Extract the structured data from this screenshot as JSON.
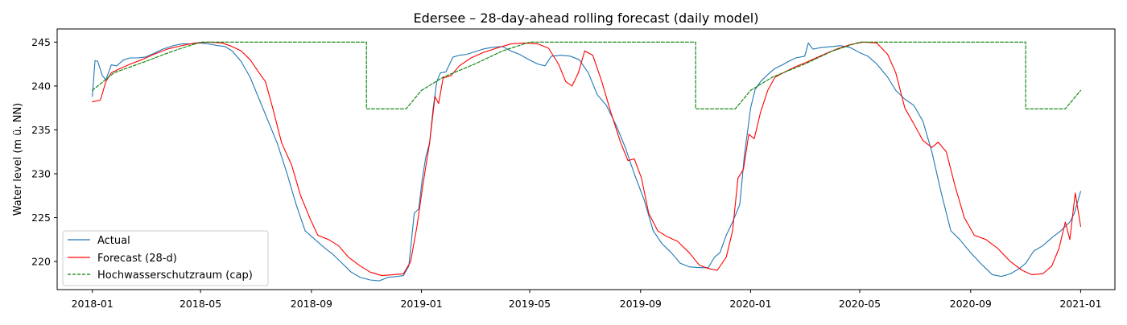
{
  "chart_data": {
    "type": "line",
    "title": "Edersee – 28-day-ahead rolling forecast (daily model)",
    "xlabel": "",
    "ylabel": "Water level (m ü. NN)",
    "xlim": [
      "2017-11-23",
      "2021-02-08"
    ],
    "ylim": [
      216.8,
      246.5
    ],
    "x_ticks": [
      "2018-01",
      "2018-05",
      "2018-09",
      "2019-01",
      "2019-05",
      "2019-09",
      "2020-01",
      "2020-05",
      "2020-09",
      "2021-01"
    ],
    "y_ticks": [
      220,
      225,
      230,
      235,
      240,
      245
    ],
    "grid": false,
    "legend_position": "lower-left",
    "series": [
      {
        "name": "Actual",
        "color": "#1f77b4",
        "style": "solid",
        "points": [
          [
            "2018-01-01",
            238.8
          ],
          [
            "2018-01-04",
            242.9
          ],
          [
            "2018-01-07",
            242.8
          ],
          [
            "2018-01-12",
            241.2
          ],
          [
            "2018-01-16",
            240.7
          ],
          [
            "2018-01-22",
            242.4
          ],
          [
            "2018-01-28",
            242.3
          ],
          [
            "2018-02-05",
            243.0
          ],
          [
            "2018-02-12",
            243.2
          ],
          [
            "2018-02-20",
            243.2
          ],
          [
            "2018-03-01",
            243.3
          ],
          [
            "2018-03-10",
            243.7
          ],
          [
            "2018-03-20",
            244.2
          ],
          [
            "2018-04-01",
            244.6
          ],
          [
            "2018-04-10",
            244.8
          ],
          [
            "2018-04-20",
            244.8
          ],
          [
            "2018-05-01",
            244.9
          ],
          [
            "2018-05-10",
            244.8
          ],
          [
            "2018-05-20",
            244.6
          ],
          [
            "2018-05-28",
            244.5
          ],
          [
            "2018-06-05",
            244.0
          ],
          [
            "2018-06-15",
            242.8
          ],
          [
            "2018-06-25",
            241.0
          ],
          [
            "2018-07-05",
            238.5
          ],
          [
            "2018-07-15",
            236.0
          ],
          [
            "2018-07-25",
            233.5
          ],
          [
            "2018-08-05",
            230.0
          ],
          [
            "2018-08-15",
            226.5
          ],
          [
            "2018-08-25",
            223.5
          ],
          [
            "2018-09-05",
            222.5
          ],
          [
            "2018-09-15",
            221.6
          ],
          [
            "2018-09-25",
            220.8
          ],
          [
            "2018-10-05",
            219.8
          ],
          [
            "2018-10-15",
            218.8
          ],
          [
            "2018-10-25",
            218.2
          ],
          [
            "2018-11-05",
            217.9
          ],
          [
            "2018-11-15",
            217.8
          ],
          [
            "2018-11-25",
            218.2
          ],
          [
            "2018-12-05",
            218.3
          ],
          [
            "2018-12-12",
            218.4
          ],
          [
            "2018-12-18",
            219.5
          ],
          [
            "2018-12-24",
            225.5
          ],
          [
            "2018-12-29",
            226.0
          ],
          [
            "2019-01-02",
            229.5
          ],
          [
            "2019-01-06",
            232.0
          ],
          [
            "2019-01-10",
            233.5
          ],
          [
            "2019-01-14",
            237.5
          ],
          [
            "2019-01-18",
            240.5
          ],
          [
            "2019-01-22",
            241.5
          ],
          [
            "2019-01-28",
            241.6
          ],
          [
            "2019-02-05",
            243.3
          ],
          [
            "2019-02-12",
            243.5
          ],
          [
            "2019-02-20",
            243.6
          ],
          [
            "2019-03-01",
            243.9
          ],
          [
            "2019-03-10",
            244.2
          ],
          [
            "2019-03-20",
            244.4
          ],
          [
            "2019-04-01",
            244.5
          ],
          [
            "2019-04-10",
            244.0
          ],
          [
            "2019-04-20",
            243.6
          ],
          [
            "2019-04-30",
            243.0
          ],
          [
            "2019-05-10",
            242.5
          ],
          [
            "2019-05-18",
            242.3
          ],
          [
            "2019-05-25",
            243.4
          ],
          [
            "2019-06-05",
            243.5
          ],
          [
            "2019-06-15",
            243.4
          ],
          [
            "2019-06-25",
            243.0
          ],
          [
            "2019-07-05",
            241.5
          ],
          [
            "2019-07-15",
            239.0
          ],
          [
            "2019-07-25",
            237.8
          ],
          [
            "2019-08-05",
            235.5
          ],
          [
            "2019-08-15",
            233.0
          ],
          [
            "2019-08-25",
            230.0
          ],
          [
            "2019-09-05",
            227.0
          ],
          [
            "2019-09-15",
            223.5
          ],
          [
            "2019-09-25",
            222.0
          ],
          [
            "2019-10-05",
            221.0
          ],
          [
            "2019-10-15",
            219.8
          ],
          [
            "2019-10-25",
            219.4
          ],
          [
            "2019-11-05",
            219.3
          ],
          [
            "2019-11-15",
            219.3
          ],
          [
            "2019-11-22",
            220.5
          ],
          [
            "2019-11-28",
            221.0
          ],
          [
            "2019-12-05",
            223.0
          ],
          [
            "2019-12-12",
            224.5
          ],
          [
            "2019-12-20",
            226.5
          ],
          [
            "2019-12-25",
            232.0
          ],
          [
            "2020-01-01",
            237.5
          ],
          [
            "2020-01-06",
            239.6
          ],
          [
            "2020-01-12",
            240.5
          ],
          [
            "2020-01-20",
            241.3
          ],
          [
            "2020-01-28",
            242.0
          ],
          [
            "2020-02-05",
            242.4
          ],
          [
            "2020-02-12",
            242.8
          ],
          [
            "2020-02-20",
            243.2
          ],
          [
            "2020-03-01",
            243.4
          ],
          [
            "2020-03-05",
            244.9
          ],
          [
            "2020-03-10",
            244.2
          ],
          [
            "2020-03-20",
            244.4
          ],
          [
            "2020-04-01",
            244.5
          ],
          [
            "2020-04-10",
            244.6
          ],
          [
            "2020-04-20",
            244.4
          ],
          [
            "2020-05-01",
            243.8
          ],
          [
            "2020-05-10",
            243.4
          ],
          [
            "2020-05-20",
            242.5
          ],
          [
            "2020-06-01",
            241.0
          ],
          [
            "2020-06-10",
            239.5
          ],
          [
            "2020-06-20",
            238.5
          ],
          [
            "2020-06-30",
            237.8
          ],
          [
            "2020-07-10",
            236.0
          ],
          [
            "2020-07-20",
            232.5
          ],
          [
            "2020-07-30",
            228.0
          ],
          [
            "2020-08-10",
            223.5
          ],
          [
            "2020-08-20",
            222.5
          ],
          [
            "2020-09-01",
            221.0
          ],
          [
            "2020-09-12",
            219.8
          ],
          [
            "2020-09-25",
            218.5
          ],
          [
            "2020-10-05",
            218.3
          ],
          [
            "2020-10-15",
            218.6
          ],
          [
            "2020-10-25",
            219.2
          ],
          [
            "2020-11-01",
            219.8
          ],
          [
            "2020-11-10",
            221.2
          ],
          [
            "2020-11-20",
            221.8
          ],
          [
            "2020-12-01",
            222.8
          ],
          [
            "2020-12-10",
            223.5
          ],
          [
            "2020-12-20",
            224.5
          ],
          [
            "2020-12-25",
            225.5
          ],
          [
            "2021-01-01",
            228.0
          ]
        ]
      },
      {
        "name": "Forecast (28-d)",
        "color": "#ff0000",
        "style": "solid",
        "points": [
          [
            "2018-01-01",
            238.2
          ],
          [
            "2018-01-10",
            238.4
          ],
          [
            "2018-01-16",
            240.5
          ],
          [
            "2018-01-22",
            241.5
          ],
          [
            "2018-02-01",
            242.0
          ],
          [
            "2018-02-12",
            242.5
          ],
          [
            "2018-02-25",
            243.0
          ],
          [
            "2018-03-10",
            243.6
          ],
          [
            "2018-03-25",
            244.2
          ],
          [
            "2018-04-10",
            244.6
          ],
          [
            "2018-04-25",
            244.9
          ],
          [
            "2018-05-10",
            245.0
          ],
          [
            "2018-05-25",
            244.9
          ],
          [
            "2018-06-05",
            244.5
          ],
          [
            "2018-06-15",
            244.0
          ],
          [
            "2018-06-25",
            243.0
          ],
          [
            "2018-07-05",
            241.5
          ],
          [
            "2018-07-12",
            240.5
          ],
          [
            "2018-07-20",
            237.5
          ],
          [
            "2018-07-30",
            233.5
          ],
          [
            "2018-08-10",
            231.0
          ],
          [
            "2018-08-20",
            227.5
          ],
          [
            "2018-08-30",
            225.0
          ],
          [
            "2018-09-08",
            223.0
          ],
          [
            "2018-09-20",
            222.5
          ],
          [
            "2018-10-01",
            221.8
          ],
          [
            "2018-10-12",
            220.5
          ],
          [
            "2018-10-25",
            219.5
          ],
          [
            "2018-11-05",
            218.8
          ],
          [
            "2018-11-18",
            218.4
          ],
          [
            "2018-12-01",
            218.5
          ],
          [
            "2018-12-12",
            218.6
          ],
          [
            "2018-12-20",
            220.0
          ],
          [
            "2018-12-27",
            224.0
          ],
          [
            "2019-01-03",
            229.0
          ],
          [
            "2019-01-10",
            233.5
          ],
          [
            "2019-01-16",
            238.8
          ],
          [
            "2019-01-20",
            238.0
          ],
          [
            "2019-01-25",
            240.9
          ],
          [
            "2019-02-03",
            241.2
          ],
          [
            "2019-02-12",
            242.3
          ],
          [
            "2019-02-25",
            243.2
          ],
          [
            "2019-03-10",
            243.8
          ],
          [
            "2019-03-25",
            244.3
          ],
          [
            "2019-04-10",
            244.8
          ],
          [
            "2019-04-25",
            244.9
          ],
          [
            "2019-05-10",
            244.8
          ],
          [
            "2019-05-22",
            244.3
          ],
          [
            "2019-06-02",
            242.5
          ],
          [
            "2019-06-10",
            240.5
          ],
          [
            "2019-06-17",
            240.0
          ],
          [
            "2019-06-24",
            241.5
          ],
          [
            "2019-07-01",
            244.0
          ],
          [
            "2019-07-10",
            243.5
          ],
          [
            "2019-07-20",
            240.5
          ],
          [
            "2019-07-30",
            237.0
          ],
          [
            "2019-08-10",
            233.5
          ],
          [
            "2019-08-18",
            231.5
          ],
          [
            "2019-08-25",
            231.7
          ],
          [
            "2019-09-02",
            229.5
          ],
          [
            "2019-09-10",
            225.5
          ],
          [
            "2019-09-20",
            223.5
          ],
          [
            "2019-10-01",
            222.8
          ],
          [
            "2019-10-12",
            222.3
          ],
          [
            "2019-10-25",
            221.0
          ],
          [
            "2019-11-05",
            219.6
          ],
          [
            "2019-11-15",
            219.2
          ],
          [
            "2019-11-25",
            219.0
          ],
          [
            "2019-12-05",
            220.5
          ],
          [
            "2019-12-12",
            223.5
          ],
          [
            "2019-12-18",
            229.5
          ],
          [
            "2019-12-24",
            230.5
          ],
          [
            "2019-12-30",
            234.5
          ],
          [
            "2020-01-05",
            234.0
          ],
          [
            "2020-01-12",
            237.0
          ],
          [
            "2020-01-20",
            239.5
          ],
          [
            "2020-01-28",
            241.0
          ],
          [
            "2020-02-08",
            241.6
          ],
          [
            "2020-02-20",
            242.2
          ],
          [
            "2020-03-05",
            242.8
          ],
          [
            "2020-03-20",
            243.5
          ],
          [
            "2020-04-05",
            244.2
          ],
          [
            "2020-04-20",
            244.7
          ],
          [
            "2020-05-05",
            245.0
          ],
          [
            "2020-05-20",
            244.9
          ],
          [
            "2020-06-01",
            243.6
          ],
          [
            "2020-06-10",
            241.5
          ],
          [
            "2020-06-20",
            237.5
          ],
          [
            "2020-07-01",
            235.5
          ],
          [
            "2020-07-10",
            233.8
          ],
          [
            "2020-07-20",
            233.0
          ],
          [
            "2020-07-27",
            233.6
          ],
          [
            "2020-08-05",
            232.5
          ],
          [
            "2020-08-15",
            228.5
          ],
          [
            "2020-08-25",
            225.0
          ],
          [
            "2020-09-05",
            223.0
          ],
          [
            "2020-09-18",
            222.5
          ],
          [
            "2020-10-01",
            221.5
          ],
          [
            "2020-10-15",
            220.0
          ],
          [
            "2020-10-28",
            219.0
          ],
          [
            "2020-11-08",
            218.5
          ],
          [
            "2020-11-20",
            218.6
          ],
          [
            "2020-11-30",
            219.5
          ],
          [
            "2020-12-08",
            221.5
          ],
          [
            "2020-12-15",
            224.5
          ],
          [
            "2020-12-20",
            222.5
          ],
          [
            "2020-12-26",
            227.8
          ],
          [
            "2021-01-01",
            224.0
          ]
        ]
      },
      {
        "name": "Hochwasserschutzraum (cap)",
        "color": "#008000",
        "style": "dashed",
        "points": [
          [
            "2018-01-01",
            239.5
          ],
          [
            "2018-01-25",
            241.5
          ],
          [
            "2018-03-01",
            242.8
          ],
          [
            "2018-04-01",
            244.0
          ],
          [
            "2018-05-01",
            245.0
          ],
          [
            "2018-11-01",
            245.0
          ],
          [
            "2018-11-01",
            237.4
          ],
          [
            "2018-12-15",
            237.4
          ],
          [
            "2019-01-01",
            239.5
          ],
          [
            "2019-01-25",
            241.0
          ],
          [
            "2019-03-01",
            242.5
          ],
          [
            "2019-04-01",
            244.0
          ],
          [
            "2019-05-01",
            245.0
          ],
          [
            "2019-11-01",
            245.0
          ],
          [
            "2019-11-01",
            237.4
          ],
          [
            "2019-12-15",
            237.4
          ],
          [
            "2020-01-01",
            239.5
          ],
          [
            "2020-01-25",
            241.0
          ],
          [
            "2020-03-01",
            242.5
          ],
          [
            "2020-04-01",
            244.0
          ],
          [
            "2020-05-01",
            245.0
          ],
          [
            "2020-11-01",
            245.0
          ],
          [
            "2020-11-01",
            237.4
          ],
          [
            "2020-12-15",
            237.4
          ],
          [
            "2021-01-01",
            239.5
          ]
        ]
      }
    ]
  }
}
